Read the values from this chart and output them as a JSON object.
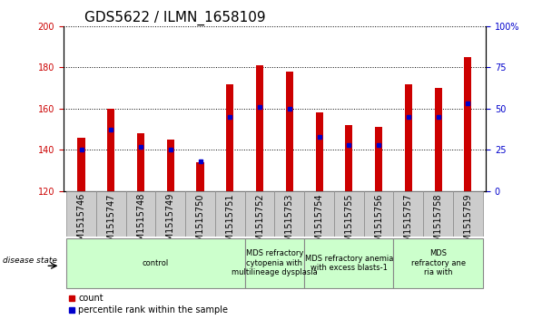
{
  "title": "GDS5622 / ILMN_1658109",
  "samples": [
    "GSM1515746",
    "GSM1515747",
    "GSM1515748",
    "GSM1515749",
    "GSM1515750",
    "GSM1515751",
    "GSM1515752",
    "GSM1515753",
    "GSM1515754",
    "GSM1515755",
    "GSM1515756",
    "GSM1515757",
    "GSM1515758",
    "GSM1515759"
  ],
  "counts": [
    146,
    160,
    148,
    145,
    134,
    172,
    181,
    178,
    158,
    152,
    151,
    172,
    170,
    185
  ],
  "percentile_pct": [
    25,
    37,
    27,
    25,
    18,
    45,
    51,
    50,
    33,
    28,
    28,
    45,
    45,
    53
  ],
  "ylim_left": [
    120,
    200
  ],
  "ylim_right": [
    0,
    100
  ],
  "left_ticks": [
    120,
    140,
    160,
    180,
    200
  ],
  "right_ticks": [
    0,
    25,
    50,
    75,
    100
  ],
  "bar_color": "#cc0000",
  "percentile_color": "#0000cc",
  "bar_width": 0.25,
  "groups": [
    {
      "label": "control",
      "start": 0,
      "end": 6
    },
    {
      "label": "MDS refractory\ncytopenia with\nmultilineage dysplasia",
      "start": 6,
      "end": 8
    },
    {
      "label": "MDS refractory anemia\nwith excess blasts-1",
      "start": 8,
      "end": 11
    },
    {
      "label": "MDS\nrefractory ane\nria with",
      "start": 11,
      "end": 14
    }
  ],
  "group_color": "#ccffcc",
  "group_border": "#888888",
  "tick_bg_color": "#cccccc",
  "tick_border_color": "#888888",
  "disease_state_label": "disease state",
  "legend_count_label": "count",
  "legend_percentile_label": "percentile rank within the sample",
  "grid_color": "#888888",
  "tick_label_color_left": "#cc0000",
  "tick_label_color_right": "#0000cc",
  "title_fontsize": 11,
  "tick_fontsize": 7,
  "group_fontsize": 6,
  "legend_fontsize": 7
}
